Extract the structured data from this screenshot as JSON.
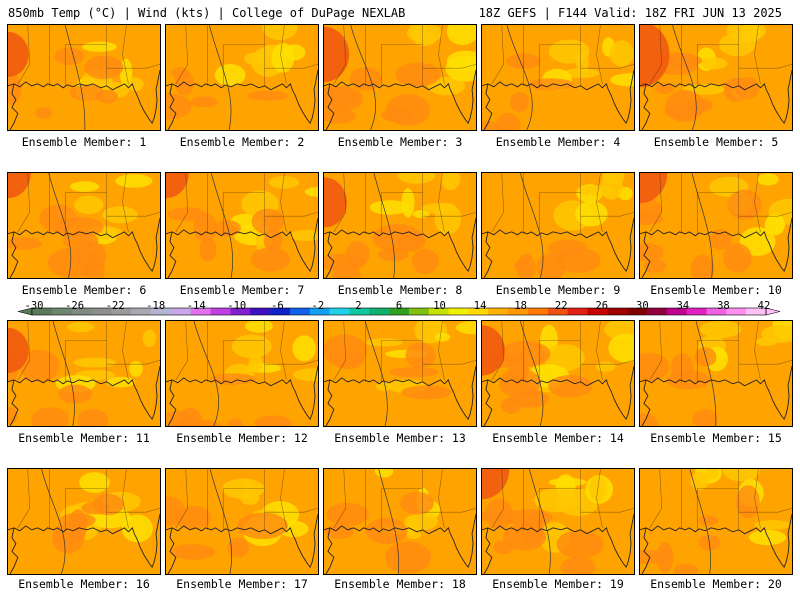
{
  "header": {
    "title_left": "850mb Temp (°C) | Wind (kts) | College of DuPage NEXLAB",
    "title_right": "18Z GEFS | F144 Valid: 18Z FRI JUN 13 2025"
  },
  "members": [
    {
      "label": "Ensemble Member: 1",
      "hot_corner": "west",
      "heat": 0.5
    },
    {
      "label": "Ensemble Member: 2",
      "hot_corner": "none",
      "heat": 0.3
    },
    {
      "label": "Ensemble Member: 3",
      "hot_corner": "west",
      "heat": 0.7
    },
    {
      "label": "Ensemble Member: 4",
      "hot_corner": "none",
      "heat": 0.4
    },
    {
      "label": "Ensemble Member: 5",
      "hot_corner": "west",
      "heat": 0.9
    },
    {
      "label": "Ensemble Member: 6",
      "hot_corner": "northwest",
      "heat": 0.6
    },
    {
      "label": "Ensemble Member: 7",
      "hot_corner": "northwest",
      "heat": 0.6
    },
    {
      "label": "Ensemble Member: 8",
      "hot_corner": "west",
      "heat": 0.6
    },
    {
      "label": "Ensemble Member: 9",
      "hot_corner": "none",
      "heat": 0.3
    },
    {
      "label": "Ensemble Member: 10",
      "hot_corner": "northwest",
      "heat": 0.8
    },
    {
      "label": "Ensemble Member: 11",
      "hot_corner": "west",
      "heat": 0.5
    },
    {
      "label": "Ensemble Member: 12",
      "hot_corner": "none",
      "heat": 0.5
    },
    {
      "label": "Ensemble Member: 13",
      "hot_corner": "none",
      "heat": 0.4
    },
    {
      "label": "Ensemble Member: 14",
      "hot_corner": "west",
      "heat": 0.6
    },
    {
      "label": "Ensemble Member: 15",
      "hot_corner": "none",
      "heat": 0.5
    },
    {
      "label": "Ensemble Member: 16",
      "hot_corner": "none",
      "heat": 0.4
    },
    {
      "label": "Ensemble Member: 17",
      "hot_corner": "none",
      "heat": 0.4
    },
    {
      "label": "Ensemble Member: 18",
      "hot_corner": "none",
      "heat": 0.4
    },
    {
      "label": "Ensemble Member: 19",
      "hot_corner": "northwest",
      "heat": 0.8
    },
    {
      "label": "Ensemble Member: 20",
      "hot_corner": "none",
      "heat": 0.5
    }
  ],
  "colorbar": {
    "labels": [
      "-30",
      "-26",
      "-22",
      "-18",
      "-14",
      "-10",
      "-6",
      "-2",
      "2",
      "6",
      "10",
      "14",
      "18",
      "22",
      "26",
      "30",
      "34",
      "38",
      "42"
    ],
    "colors": [
      "#5a7a5a",
      "#6e866e",
      "#808a80",
      "#8e8e8e",
      "#9a9a9a",
      "#a8a8b4",
      "#b4b4d2",
      "#c8a8e8",
      "#e070f0",
      "#c040e0",
      "#8020d0",
      "#4010c0",
      "#1020c8",
      "#1060e8",
      "#10a0f0",
      "#20d0e8",
      "#10c8a0",
      "#10b070",
      "#30a020",
      "#80c010",
      "#c8e000",
      "#f0f000",
      "#ffd800",
      "#ffb000",
      "#ff9800",
      "#ff7800",
      "#f05010",
      "#e02010",
      "#c80000",
      "#a00000",
      "#800000",
      "#900040",
      "#c00090",
      "#e020c0",
      "#f060e0",
      "#ff90f0",
      "#ffc0f8"
    ],
    "map_fill": "#ffa300",
    "warm_fill": "#ff8a10",
    "hot_fill": "#f05a10",
    "cool_fill": "#ffc800",
    "cooler_fill": "#ffe000"
  }
}
